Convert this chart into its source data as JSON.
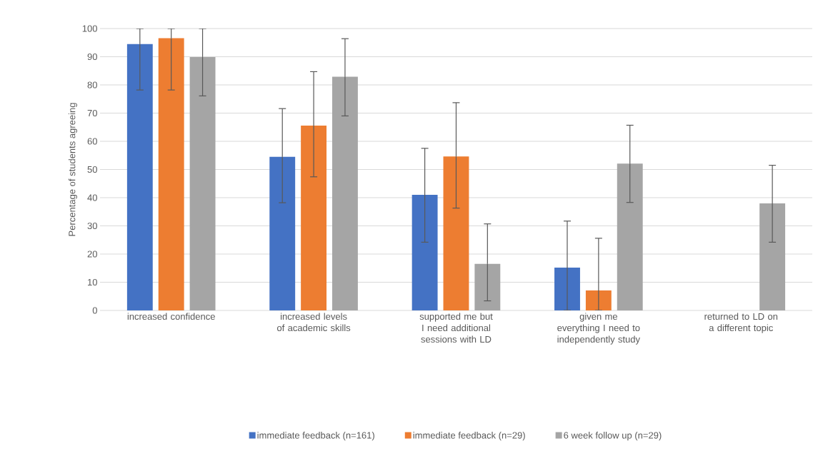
{
  "chart_data": {
    "type": "bar",
    "ylabel": "Percentage of students agreeing",
    "categories": [
      "increased confidence",
      "increased levels of academic skills",
      "supported me but I need additional sessions with LD",
      "given me everything I need to independently study",
      "returned to LD on a different topic"
    ],
    "series": [
      {
        "name": "immediate feedback (n=161)",
        "color": "#4472c4",
        "values": [
          94.5,
          54.5,
          41.0,
          15.2,
          null
        ],
        "errors": [
          [
            78.2,
            100
          ],
          [
            38.2,
            71.6
          ],
          [
            24.2,
            57.5
          ],
          [
            0,
            31.7
          ],
          null
        ]
      },
      {
        "name": "immediate feedback (n=29)",
        "color": "#ed7d31",
        "values": [
          96.6,
          65.6,
          54.6,
          7.1,
          null
        ],
        "errors": [
          [
            78.2,
            100
          ],
          [
            47.4,
            84.7
          ],
          [
            36.3,
            73.7
          ],
          [
            0,
            25.6
          ],
          null
        ]
      },
      {
        "name": "6 week follow up (n=29)",
        "color": "#a5a5a5",
        "values": [
          89.9,
          82.9,
          16.5,
          52.1,
          38.0
        ],
        "errors": [
          [
            76.1,
            100
          ],
          [
            69.0,
            96.4
          ],
          [
            3.4,
            30.7
          ],
          [
            38.3,
            65.7
          ],
          [
            24.2,
            51.5
          ]
        ]
      }
    ],
    "ylim": [
      0,
      100
    ],
    "yticks": [
      0,
      10,
      20,
      30,
      40,
      50,
      60,
      70,
      80,
      90,
      100
    ],
    "grid": "y",
    "legend": "bottom"
  }
}
